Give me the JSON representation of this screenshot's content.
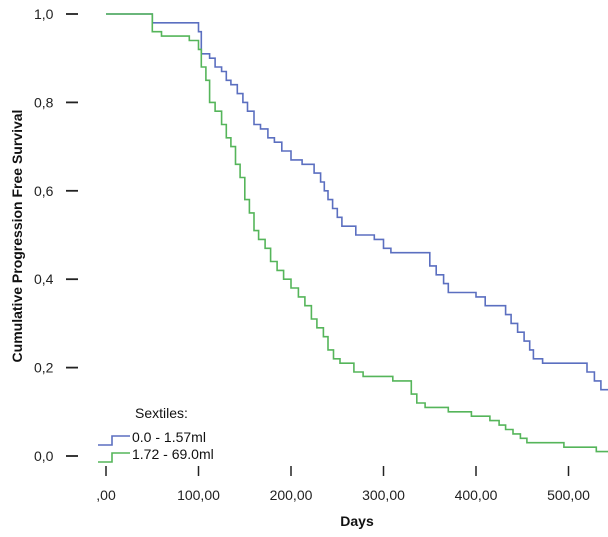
{
  "chart_data": {
    "type": "line",
    "step": true,
    "title": "",
    "xlabel": "Days",
    "ylabel": "Cumulative Progression Free Survival",
    "xlim": [
      0,
      550
    ],
    "ylim": [
      0,
      1.0
    ],
    "x_ticks": [
      {
        "value": 0,
        "label": ",00"
      },
      {
        "value": 100,
        "label": "100,00"
      },
      {
        "value": 200,
        "label": "200,00"
      },
      {
        "value": 300,
        "label": "300,00"
      },
      {
        "value": 400,
        "label": "400,00"
      },
      {
        "value": 500,
        "label": "500,00"
      }
    ],
    "y_ticks": [
      {
        "value": 0.0,
        "label": "0,0"
      },
      {
        "value": 0.2,
        "label": "0,2"
      },
      {
        "value": 0.4,
        "label": "0,4"
      },
      {
        "value": 0.6,
        "label": "0,6"
      },
      {
        "value": 0.8,
        "label": "0,8"
      },
      {
        "value": 1.0,
        "label": "1,0"
      }
    ],
    "legend": {
      "title": "Sextiles:",
      "placement": "bottom-left"
    },
    "grid": false,
    "series": [
      {
        "name": "0.0 - 1.57ml",
        "color": "#5b6fc0",
        "points": [
          [
            0,
            1.0
          ],
          [
            50,
            1.0
          ],
          [
            50,
            0.98
          ],
          [
            100,
            0.98
          ],
          [
            100,
            0.96
          ],
          [
            103,
            0.96
          ],
          [
            103,
            0.91
          ],
          [
            112,
            0.91
          ],
          [
            112,
            0.9
          ],
          [
            118,
            0.9
          ],
          [
            118,
            0.88
          ],
          [
            125,
            0.88
          ],
          [
            125,
            0.87
          ],
          [
            130,
            0.87
          ],
          [
            130,
            0.85
          ],
          [
            135,
            0.85
          ],
          [
            135,
            0.84
          ],
          [
            142,
            0.84
          ],
          [
            142,
            0.82
          ],
          [
            148,
            0.82
          ],
          [
            148,
            0.8
          ],
          [
            153,
            0.8
          ],
          [
            153,
            0.78
          ],
          [
            160,
            0.78
          ],
          [
            160,
            0.75
          ],
          [
            167,
            0.75
          ],
          [
            167,
            0.74
          ],
          [
            175,
            0.74
          ],
          [
            175,
            0.72
          ],
          [
            182,
            0.72
          ],
          [
            182,
            0.71
          ],
          [
            190,
            0.71
          ],
          [
            190,
            0.69
          ],
          [
            200,
            0.69
          ],
          [
            200,
            0.67
          ],
          [
            212,
            0.67
          ],
          [
            212,
            0.66
          ],
          [
            225,
            0.66
          ],
          [
            225,
            0.64
          ],
          [
            232,
            0.64
          ],
          [
            232,
            0.62
          ],
          [
            236,
            0.62
          ],
          [
            236,
            0.6
          ],
          [
            240,
            0.6
          ],
          [
            240,
            0.58
          ],
          [
            245,
            0.58
          ],
          [
            245,
            0.56
          ],
          [
            250,
            0.56
          ],
          [
            250,
            0.54
          ],
          [
            255,
            0.54
          ],
          [
            255,
            0.52
          ],
          [
            270,
            0.52
          ],
          [
            270,
            0.5
          ],
          [
            290,
            0.5
          ],
          [
            290,
            0.49
          ],
          [
            300,
            0.49
          ],
          [
            300,
            0.47
          ],
          [
            308,
            0.47
          ],
          [
            308,
            0.46
          ],
          [
            350,
            0.46
          ],
          [
            350,
            0.43
          ],
          [
            357,
            0.43
          ],
          [
            357,
            0.41
          ],
          [
            365,
            0.41
          ],
          [
            365,
            0.39
          ],
          [
            370,
            0.39
          ],
          [
            370,
            0.37
          ],
          [
            400,
            0.37
          ],
          [
            400,
            0.36
          ],
          [
            410,
            0.36
          ],
          [
            410,
            0.34
          ],
          [
            432,
            0.34
          ],
          [
            432,
            0.32
          ],
          [
            438,
            0.32
          ],
          [
            438,
            0.3
          ],
          [
            445,
            0.3
          ],
          [
            445,
            0.28
          ],
          [
            452,
            0.28
          ],
          [
            452,
            0.26
          ],
          [
            458,
            0.26
          ],
          [
            458,
            0.24
          ],
          [
            462,
            0.24
          ],
          [
            462,
            0.22
          ],
          [
            472,
            0.22
          ],
          [
            472,
            0.21
          ],
          [
            520,
            0.21
          ],
          [
            520,
            0.19
          ],
          [
            528,
            0.19
          ],
          [
            528,
            0.17
          ],
          [
            535,
            0.17
          ],
          [
            535,
            0.15
          ],
          [
            550,
            0.15
          ],
          [
            550,
            0.13
          ]
        ]
      },
      {
        "name": "1.72 - 69.0ml",
        "color": "#55b55a",
        "points": [
          [
            0,
            1.0
          ],
          [
            50,
            1.0
          ],
          [
            50,
            0.96
          ],
          [
            60,
            0.96
          ],
          [
            60,
            0.95
          ],
          [
            90,
            0.95
          ],
          [
            90,
            0.94
          ],
          [
            100,
            0.94
          ],
          [
            100,
            0.92
          ],
          [
            103,
            0.92
          ],
          [
            103,
            0.88
          ],
          [
            108,
            0.88
          ],
          [
            108,
            0.85
          ],
          [
            112,
            0.85
          ],
          [
            112,
            0.8
          ],
          [
            118,
            0.8
          ],
          [
            118,
            0.78
          ],
          [
            125,
            0.78
          ],
          [
            125,
            0.75
          ],
          [
            130,
            0.75
          ],
          [
            130,
            0.72
          ],
          [
            135,
            0.72
          ],
          [
            135,
            0.7
          ],
          [
            140,
            0.7
          ],
          [
            140,
            0.66
          ],
          [
            145,
            0.66
          ],
          [
            145,
            0.63
          ],
          [
            150,
            0.63
          ],
          [
            150,
            0.58
          ],
          [
            155,
            0.58
          ],
          [
            155,
            0.55
          ],
          [
            160,
            0.55
          ],
          [
            160,
            0.51
          ],
          [
            165,
            0.51
          ],
          [
            165,
            0.49
          ],
          [
            172,
            0.49
          ],
          [
            172,
            0.47
          ],
          [
            178,
            0.47
          ],
          [
            178,
            0.44
          ],
          [
            185,
            0.44
          ],
          [
            185,
            0.42
          ],
          [
            192,
            0.42
          ],
          [
            192,
            0.4
          ],
          [
            200,
            0.4
          ],
          [
            200,
            0.38
          ],
          [
            208,
            0.38
          ],
          [
            208,
            0.36
          ],
          [
            215,
            0.36
          ],
          [
            215,
            0.34
          ],
          [
            222,
            0.34
          ],
          [
            222,
            0.31
          ],
          [
            228,
            0.31
          ],
          [
            228,
            0.29
          ],
          [
            235,
            0.29
          ],
          [
            235,
            0.27
          ],
          [
            240,
            0.27
          ],
          [
            240,
            0.24
          ],
          [
            246,
            0.24
          ],
          [
            246,
            0.22
          ],
          [
            253,
            0.22
          ],
          [
            253,
            0.21
          ],
          [
            268,
            0.21
          ],
          [
            268,
            0.19
          ],
          [
            278,
            0.19
          ],
          [
            278,
            0.18
          ],
          [
            310,
            0.18
          ],
          [
            310,
            0.17
          ],
          [
            330,
            0.17
          ],
          [
            330,
            0.14
          ],
          [
            336,
            0.14
          ],
          [
            336,
            0.12
          ],
          [
            345,
            0.12
          ],
          [
            345,
            0.11
          ],
          [
            370,
            0.11
          ],
          [
            370,
            0.1
          ],
          [
            395,
            0.1
          ],
          [
            395,
            0.09
          ],
          [
            415,
            0.09
          ],
          [
            415,
            0.08
          ],
          [
            425,
            0.08
          ],
          [
            425,
            0.07
          ],
          [
            432,
            0.07
          ],
          [
            432,
            0.06
          ],
          [
            440,
            0.06
          ],
          [
            440,
            0.05
          ],
          [
            448,
            0.05
          ],
          [
            448,
            0.04
          ],
          [
            455,
            0.04
          ],
          [
            455,
            0.03
          ],
          [
            495,
            0.03
          ],
          [
            495,
            0.02
          ],
          [
            530,
            0.02
          ],
          [
            530,
            0.01
          ],
          [
            550,
            0.01
          ]
        ]
      }
    ]
  }
}
